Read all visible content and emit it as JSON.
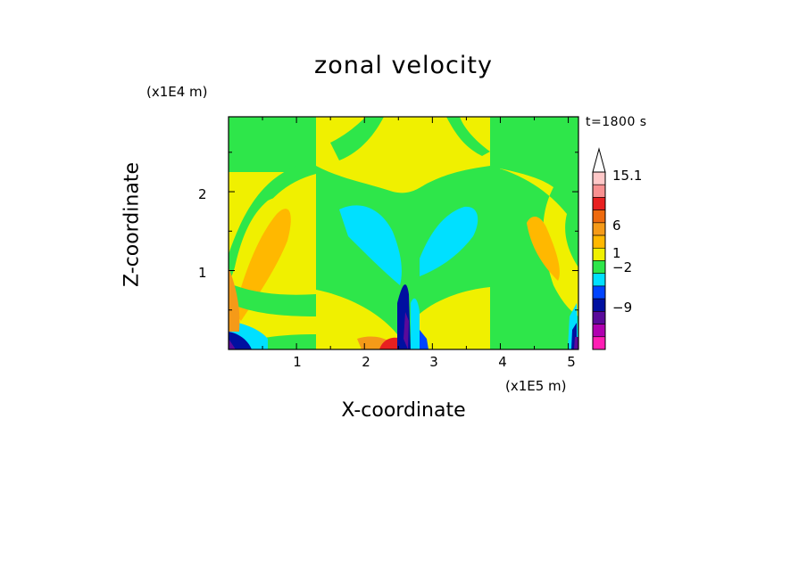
{
  "chart_data": {
    "type": "heatmap",
    "title": "zonal velocity",
    "xlabel": "X-coordinate",
    "ylabel": "Z-coordinate",
    "x_unit": "(x1E5 m)",
    "y_unit": "(x1E4 m)",
    "time_label": "t=1800 s",
    "xlim": [
      0,
      5.15
    ],
    "ylim": [
      0,
      2.95
    ],
    "x_ticks": [
      1,
      2,
      3,
      4,
      5
    ],
    "y_ticks": [
      1,
      2
    ],
    "x_tick_labels": [
      "1",
      "2",
      "3",
      "4",
      "5"
    ],
    "y_tick_labels": [
      "1",
      "2"
    ],
    "colorbar": {
      "labels": [
        {
          "text": "15.1",
          "value": 15.1
        },
        {
          "text": "6",
          "value": 6
        },
        {
          "text": "1",
          "value": 1
        },
        {
          "text": "−2",
          "value": -2
        },
        {
          "text": "−9",
          "value": -9
        }
      ],
      "colors_top_to_bottom": [
        "#ffc8c8",
        "#f89090",
        "#e82020",
        "#ee6a0e",
        "#f59a18",
        "#ffb800",
        "#f0f000",
        "#2ee64a",
        "#00e0ff",
        "#0044ff",
        "#0010a0",
        "#5a0a9a",
        "#b000b0",
        "#ff1eb4"
      ],
      "extend": "max"
    },
    "colors": {
      "yellow": "#f0f000",
      "green": "#2ee64a",
      "cyan": "#00e0ff",
      "orange": "#ffb800",
      "dark_orange": "#f59a18",
      "red": "#e82020",
      "blue": "#0044ff",
      "navy": "#0010a0",
      "purple": "#5a0a9a",
      "magenta": "#ff1eb4"
    }
  }
}
